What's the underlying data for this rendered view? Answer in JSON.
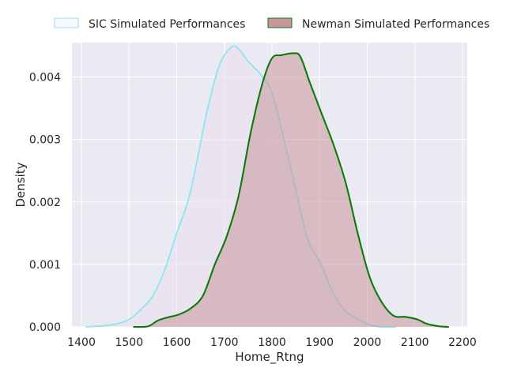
{
  "chart_data": {
    "type": "area",
    "title": "",
    "xlabel": "Home_Rtng",
    "ylabel": "Density",
    "xlim": [
      1380,
      2210
    ],
    "ylim": [
      0,
      0.00455
    ],
    "xticks": [
      1400,
      1500,
      1600,
      1700,
      1800,
      1900,
      2000,
      2100,
      2200
    ],
    "xtick_labels": [
      "1400",
      "1500",
      "1600",
      "1700",
      "1800",
      "1900",
      "2000",
      "2100",
      "2200"
    ],
    "yticks": [
      0,
      0.001,
      0.002,
      0.003,
      0.004
    ],
    "ytick_labels": [
      "0.000",
      "0.001",
      "0.002",
      "0.003",
      "0.004"
    ],
    "grid": true,
    "legend_position": "top, outside plot area",
    "series": [
      {
        "name": "SIC Simulated Performances",
        "line_color": "#8de5ef",
        "fill_color": "#e8e0ef",
        "fill_opacity": 0.6,
        "points": [
          [
            1410,
            0.0
          ],
          [
            1450,
            2e-05
          ],
          [
            1475,
            5e-05
          ],
          [
            1500,
            0.00012
          ],
          [
            1525,
            0.00028
          ],
          [
            1550,
            0.0005
          ],
          [
            1575,
            0.00092
          ],
          [
            1600,
            0.0015
          ],
          [
            1625,
            0.00205
          ],
          [
            1645,
            0.00275
          ],
          [
            1665,
            0.0035
          ],
          [
            1690,
            0.0042
          ],
          [
            1715,
            0.00448
          ],
          [
            1730,
            0.00445
          ],
          [
            1750,
            0.00425
          ],
          [
            1775,
            0.00405
          ],
          [
            1800,
            0.00375
          ],
          [
            1825,
            0.003
          ],
          [
            1850,
            0.0022
          ],
          [
            1875,
            0.0014
          ],
          [
            1900,
            0.00105
          ],
          [
            1925,
            0.0006
          ],
          [
            1950,
            0.00028
          ],
          [
            1975,
            0.00015
          ],
          [
            2000,
            5e-05
          ],
          [
            2025,
            0.0
          ],
          [
            2060,
            0.0
          ]
        ]
      },
      {
        "name": "Newman Simulated Performances",
        "line_color": "#0d7a0d",
        "fill_color": "#c9959a",
        "fill_opacity": 0.55,
        "points": [
          [
            1510,
            0.0
          ],
          [
            1540,
            1e-05
          ],
          [
            1560,
            0.0001
          ],
          [
            1580,
            0.00015
          ],
          [
            1605,
            0.0002
          ],
          [
            1630,
            0.0003
          ],
          [
            1655,
            0.0005
          ],
          [
            1680,
            0.001
          ],
          [
            1705,
            0.00145
          ],
          [
            1730,
            0.0021
          ],
          [
            1755,
            0.0031
          ],
          [
            1780,
            0.0039
          ],
          [
            1800,
            0.0043
          ],
          [
            1820,
            0.00435
          ],
          [
            1845,
            0.00438
          ],
          [
            1860,
            0.00432
          ],
          [
            1880,
            0.0039
          ],
          [
            1905,
            0.0034
          ],
          [
            1930,
            0.0029
          ],
          [
            1955,
            0.0023
          ],
          [
            1980,
            0.0015
          ],
          [
            2005,
            0.0008
          ],
          [
            2030,
            0.0004
          ],
          [
            2055,
            0.00018
          ],
          [
            2080,
            0.00016
          ],
          [
            2105,
            0.00012
          ],
          [
            2125,
            5e-05
          ],
          [
            2150,
            1e-05
          ],
          [
            2170,
            0.0
          ]
        ]
      }
    ]
  }
}
